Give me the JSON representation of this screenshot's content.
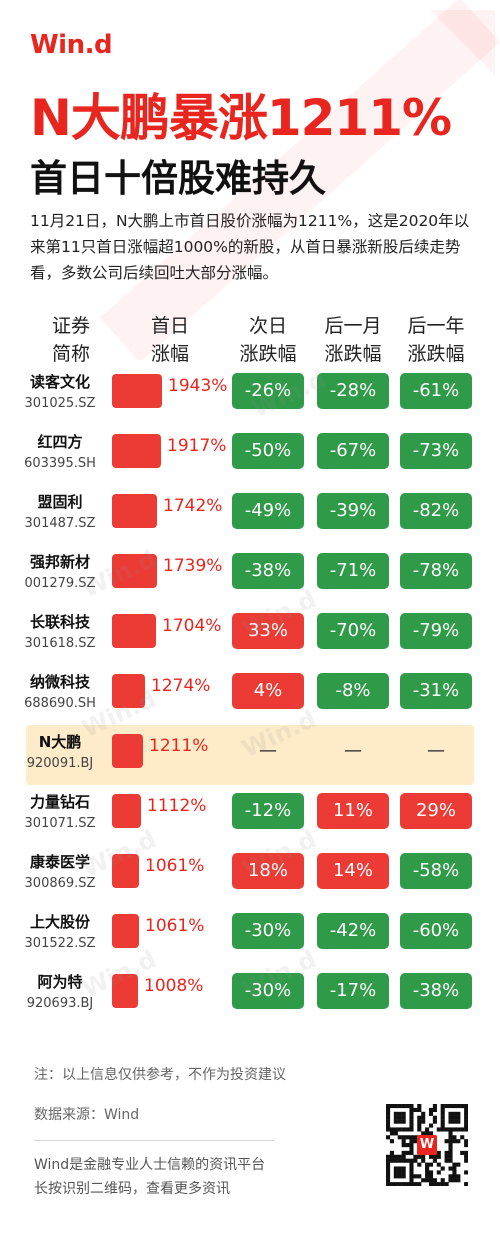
{
  "brand": {
    "logo": "Win.d",
    "accent": "#e8261f",
    "up_color": "#ec3a34",
    "down_color": "#2f9a48",
    "highlight_row": "#fdebc9"
  },
  "title": "N大鹏暴涨1211%",
  "subtitle": "首日十倍股难持久",
  "intro": "11月21日，N大鹏上市首日股价涨幅为1211%，这是2020年以来第11只首日涨幅超1000%的新股，从首日暴涨新股后续走势看，多数公司后续回吐大部分涨幅。",
  "headers": {
    "col1": [
      "证券",
      "简称"
    ],
    "col2": [
      "首日",
      "涨幅"
    ],
    "col3": [
      "次日",
      "涨跌幅"
    ],
    "col4": [
      "后一月",
      "涨跌幅"
    ],
    "col5": [
      "后一年",
      "涨跌幅"
    ]
  },
  "rows": [
    {
      "name": "读客文化",
      "code": "301025.SZ",
      "first_day": "1943%",
      "first_day_value": 1943,
      "next_day": "-26%",
      "next_month": "-28%",
      "next_year": "-61%"
    },
    {
      "name": "红四方",
      "code": "603395.SH",
      "first_day": "1917%",
      "first_day_value": 1917,
      "next_day": "-50%",
      "next_month": "-67%",
      "next_year": "-73%"
    },
    {
      "name": "盟固利",
      "code": "301487.SZ",
      "first_day": "1742%",
      "first_day_value": 1742,
      "next_day": "-49%",
      "next_month": "-39%",
      "next_year": "-82%"
    },
    {
      "name": "强邦新材",
      "code": "001279.SZ",
      "first_day": "1739%",
      "first_day_value": 1739,
      "next_day": "-38%",
      "next_month": "-71%",
      "next_year": "-78%"
    },
    {
      "name": "长联科技",
      "code": "301618.SZ",
      "first_day": "1704%",
      "first_day_value": 1704,
      "next_day": "33%",
      "next_month": "-70%",
      "next_year": "-79%"
    },
    {
      "name": "纳微科技",
      "code": "688690.SH",
      "first_day": "1274%",
      "first_day_value": 1274,
      "next_day": "4%",
      "next_month": "-8%",
      "next_year": "-31%"
    },
    {
      "name": "N大鹏",
      "code": "920091.BJ",
      "first_day": "1211%",
      "first_day_value": 1211,
      "next_day": "—",
      "next_month": "—",
      "next_year": "—",
      "highlight": true
    },
    {
      "name": "力量钻石",
      "code": "301071.SZ",
      "first_day": "1112%",
      "first_day_value": 1112,
      "next_day": "-12%",
      "next_month": "11%",
      "next_year": "29%"
    },
    {
      "name": "康泰医学",
      "code": "300869.SZ",
      "first_day": "1061%",
      "first_day_value": 1061,
      "next_day": "18%",
      "next_month": "14%",
      "next_year": "-58%"
    },
    {
      "name": "上大股份",
      "code": "301522.SZ",
      "first_day": "1061%",
      "first_day_value": 1061,
      "next_day": "-30%",
      "next_month": "-42%",
      "next_year": "-60%"
    },
    {
      "name": "阿为特",
      "code": "920693.BJ",
      "first_day": "1008%",
      "first_day_value": 1008,
      "next_day": "-30%",
      "next_month": "-17%",
      "next_year": "-38%"
    }
  ],
  "note": "注：以上信息仅供参考，不作为投资建议",
  "source": "数据来源：Wind",
  "footer_line1": "Wind是金融专业人士信赖的资讯平台",
  "footer_line2": "长按识别二维码，查看更多资讯",
  "watermark": "Win.d",
  "qr_badge": "W"
}
